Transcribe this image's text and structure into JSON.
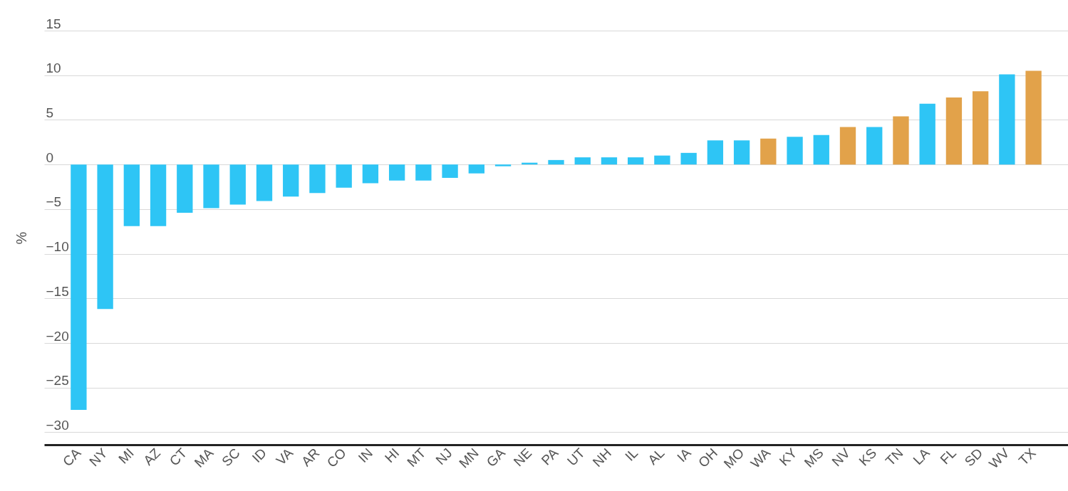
{
  "chart_data": {
    "type": "bar",
    "ylabel": "%",
    "categories": [
      "CA",
      "NY",
      "MI",
      "AZ",
      "CT",
      "MA",
      "SC",
      "ID",
      "VA",
      "AR",
      "CO",
      "IN",
      "HI",
      "MT",
      "NJ",
      "MN",
      "GA",
      "NE",
      "PA",
      "UT",
      "NH",
      "IL",
      "AL",
      "IA",
      "OH",
      "MO",
      "WA",
      "KY",
      "MS",
      "NV",
      "KS",
      "TN",
      "LA",
      "FL",
      "SD",
      "WV",
      "TX"
    ],
    "values": [
      -27.5,
      -16.2,
      -6.9,
      -6.9,
      -5.4,
      -4.9,
      -4.5,
      -4.1,
      -3.6,
      -3.2,
      -2.6,
      -2.1,
      -1.8,
      -1.8,
      -1.5,
      -1.0,
      -0.2,
      0.2,
      0.5,
      0.8,
      0.8,
      0.8,
      1.0,
      1.3,
      2.7,
      2.7,
      2.9,
      3.1,
      3.3,
      4.2,
      4.2,
      5.4,
      6.8,
      7.5,
      8.2,
      10.1,
      10.5
    ],
    "colors": [
      "#2ec5f5",
      "#2ec5f5",
      "#2ec5f5",
      "#2ec5f5",
      "#2ec5f5",
      "#2ec5f5",
      "#2ec5f5",
      "#2ec5f5",
      "#2ec5f5",
      "#2ec5f5",
      "#2ec5f5",
      "#2ec5f5",
      "#2ec5f5",
      "#2ec5f5",
      "#2ec5f5",
      "#2ec5f5",
      "#2ec5f5",
      "#2ec5f5",
      "#2ec5f5",
      "#2ec5f5",
      "#2ec5f5",
      "#2ec5f5",
      "#2ec5f5",
      "#2ec5f5",
      "#2ec5f5",
      "#2ec5f5",
      "#e2a24a",
      "#2ec5f5",
      "#2ec5f5",
      "#e2a24a",
      "#2ec5f5",
      "#e2a24a",
      "#2ec5f5",
      "#e2a24a",
      "#e2a24a",
      "#2ec5f5",
      "#e2a24a"
    ],
    "ylim": [
      -31.4,
      15
    ],
    "yticks": [
      -30,
      -25,
      -20,
      -15,
      -10,
      -5,
      0,
      5,
      10,
      15
    ],
    "grid": "y"
  }
}
